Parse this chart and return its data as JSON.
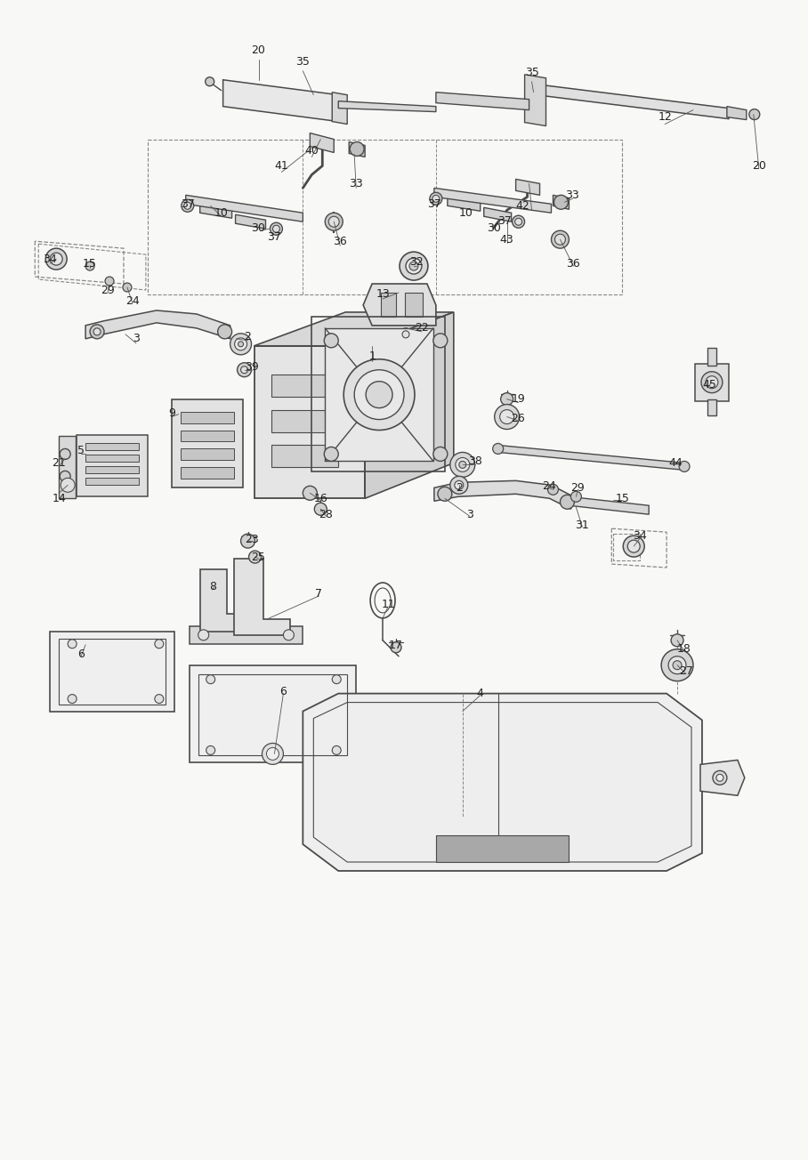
{
  "bg": "#f8f8f6",
  "lc": "#4a4a4a",
  "dlc": "#888888",
  "tc": "#222222",
  "fw": 9.08,
  "fh": 13.04,
  "dpi": 100
}
